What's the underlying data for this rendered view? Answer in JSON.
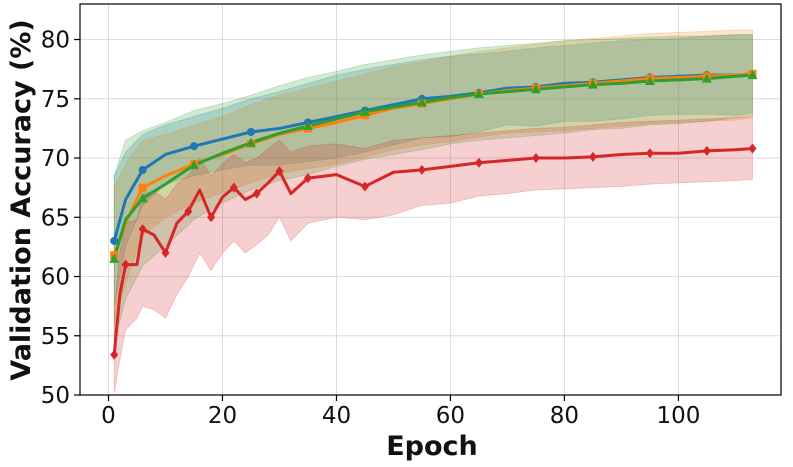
{
  "chart_data": {
    "type": "line",
    "title": "",
    "xlabel": "Epoch",
    "ylabel": "Validation Accuracy (%)",
    "xlim": [
      -5,
      118
    ],
    "ylim": [
      50,
      83
    ],
    "xticks": [
      0,
      20,
      40,
      60,
      80,
      100
    ],
    "yticks": [
      50,
      55,
      60,
      65,
      70,
      75,
      80
    ],
    "grid": true,
    "legend": "none",
    "marker_every": 5,
    "series": [
      {
        "color": "#1f77b4",
        "marker": "circle",
        "x": [
          1,
          3,
          6,
          10,
          15,
          20,
          25,
          30,
          35,
          40,
          45,
          50,
          55,
          60,
          65,
          70,
          75,
          80,
          85,
          90,
          95,
          100,
          105,
          110,
          113
        ],
        "y": [
          63.0,
          66.5,
          69.0,
          70.3,
          71.0,
          71.6,
          72.2,
          72.5,
          73.0,
          73.5,
          74.0,
          74.5,
          75.0,
          75.2,
          75.5,
          75.9,
          76.0,
          76.3,
          76.4,
          76.6,
          76.8,
          76.9,
          77.0,
          77.0,
          77.1
        ],
        "upper": [
          68.5,
          70.5,
          72.0,
          72.8,
          73.5,
          74.2,
          75.0,
          75.6,
          76.3,
          77.0,
          77.5,
          77.9,
          78.3,
          78.6,
          78.8,
          79.0,
          79.3,
          79.5,
          79.7,
          79.9,
          80.0,
          80.1,
          80.3,
          80.4,
          80.4
        ],
        "lower": [
          57.5,
          62.5,
          66.0,
          67.8,
          68.5,
          69.0,
          69.4,
          69.4,
          69.7,
          70.0,
          70.5,
          71.1,
          71.7,
          71.8,
          72.2,
          72.8,
          72.7,
          73.1,
          73.1,
          73.3,
          73.6,
          73.7,
          73.7,
          73.6,
          73.8
        ]
      },
      {
        "color": "#ff7f0e",
        "marker": "square",
        "x": [
          1,
          3,
          6,
          10,
          15,
          20,
          25,
          30,
          35,
          40,
          45,
          50,
          55,
          60,
          65,
          70,
          75,
          80,
          85,
          90,
          95,
          100,
          105,
          110,
          113
        ],
        "y": [
          61.8,
          64.5,
          67.5,
          68.5,
          69.5,
          70.3,
          71.2,
          72.0,
          72.5,
          73.0,
          73.6,
          74.2,
          74.6,
          75.0,
          75.4,
          75.7,
          75.9,
          76.1,
          76.3,
          76.5,
          76.7,
          76.8,
          76.9,
          77.0,
          77.1
        ],
        "upper": [
          67.5,
          69.5,
          71.5,
          72.0,
          72.8,
          73.5,
          74.5,
          75.3,
          75.9,
          76.5,
          77.1,
          77.7,
          78.1,
          78.6,
          79.0,
          79.3,
          79.6,
          79.9,
          80.1,
          80.3,
          80.5,
          80.6,
          80.7,
          80.8,
          80.8
        ],
        "lower": [
          56.0,
          59.5,
          63.5,
          65.0,
          66.2,
          67.1,
          67.9,
          68.7,
          69.1,
          69.5,
          70.1,
          70.7,
          71.1,
          71.4,
          71.8,
          72.1,
          72.2,
          72.3,
          72.5,
          72.7,
          72.9,
          73.0,
          73.1,
          73.2,
          73.4
        ]
      },
      {
        "color": "#2ca02c",
        "marker": "triangle",
        "x": [
          1,
          3,
          6,
          10,
          15,
          20,
          25,
          30,
          35,
          40,
          45,
          50,
          55,
          60,
          65,
          70,
          75,
          80,
          85,
          90,
          95,
          100,
          105,
          110,
          113
        ],
        "y": [
          61.5,
          64.8,
          66.6,
          67.8,
          69.4,
          70.4,
          71.3,
          72.1,
          72.7,
          73.3,
          73.9,
          74.3,
          74.7,
          75.1,
          75.4,
          75.6,
          75.8,
          76.0,
          76.2,
          76.3,
          76.5,
          76.6,
          76.7,
          76.9,
          77.0
        ],
        "upper": [
          68.5,
          71.5,
          72.3,
          73.0,
          74.0,
          74.6,
          75.3,
          76.1,
          76.8,
          77.3,
          77.9,
          78.3,
          78.7,
          79.0,
          79.3,
          79.5,
          79.7,
          79.9,
          80.0,
          80.1,
          80.2,
          80.3,
          80.3,
          80.4,
          80.4
        ],
        "lower": [
          54.5,
          58.1,
          60.9,
          62.6,
          64.8,
          66.2,
          67.3,
          68.1,
          68.6,
          69.3,
          69.9,
          70.3,
          70.7,
          71.2,
          71.5,
          71.7,
          71.9,
          72.1,
          72.4,
          72.5,
          72.8,
          72.9,
          73.1,
          73.4,
          73.6
        ]
      },
      {
        "color": "#d62728",
        "marker": "diamond",
        "x": [
          1,
          2,
          3,
          5,
          6,
          8,
          10,
          12,
          14,
          16,
          18,
          20,
          22,
          24,
          26,
          28,
          30,
          32,
          35,
          40,
          45,
          50,
          55,
          60,
          65,
          70,
          75,
          80,
          85,
          90,
          95,
          100,
          105,
          110,
          113
        ],
        "y": [
          53.4,
          58.5,
          61.0,
          61.0,
          64.0,
          63.5,
          62.0,
          64.5,
          65.5,
          67.3,
          65.0,
          66.7,
          67.5,
          66.5,
          67.0,
          67.9,
          68.9,
          67.0,
          68.3,
          68.6,
          67.6,
          68.8,
          69.0,
          69.3,
          69.6,
          69.8,
          70.0,
          70.0,
          70.1,
          70.3,
          70.4,
          70.4,
          70.6,
          70.7,
          70.8
        ],
        "upper": [
          57.0,
          62.0,
          64.5,
          64.8,
          67.0,
          67.2,
          66.5,
          67.8,
          68.5,
          70.0,
          68.5,
          69.5,
          70.3,
          69.6,
          70.0,
          70.8,
          71.5,
          70.5,
          71.0,
          71.2,
          70.8,
          71.5,
          71.7,
          71.9,
          72.1,
          72.3,
          72.5,
          72.6,
          72.8,
          73.0,
          73.1,
          73.2,
          73.3,
          73.4,
          73.5
        ],
        "lower": [
          50.2,
          53.0,
          55.5,
          56.5,
          57.5,
          57.2,
          56.5,
          58.5,
          60.0,
          62.0,
          60.5,
          62.0,
          63.0,
          62.0,
          62.7,
          63.5,
          65.0,
          63.0,
          64.5,
          65.0,
          64.8,
          65.2,
          66.0,
          66.2,
          66.8,
          67.0,
          67.3,
          67.4,
          67.5,
          67.6,
          67.8,
          67.9,
          68.0,
          68.1,
          68.2
        ]
      }
    ]
  }
}
